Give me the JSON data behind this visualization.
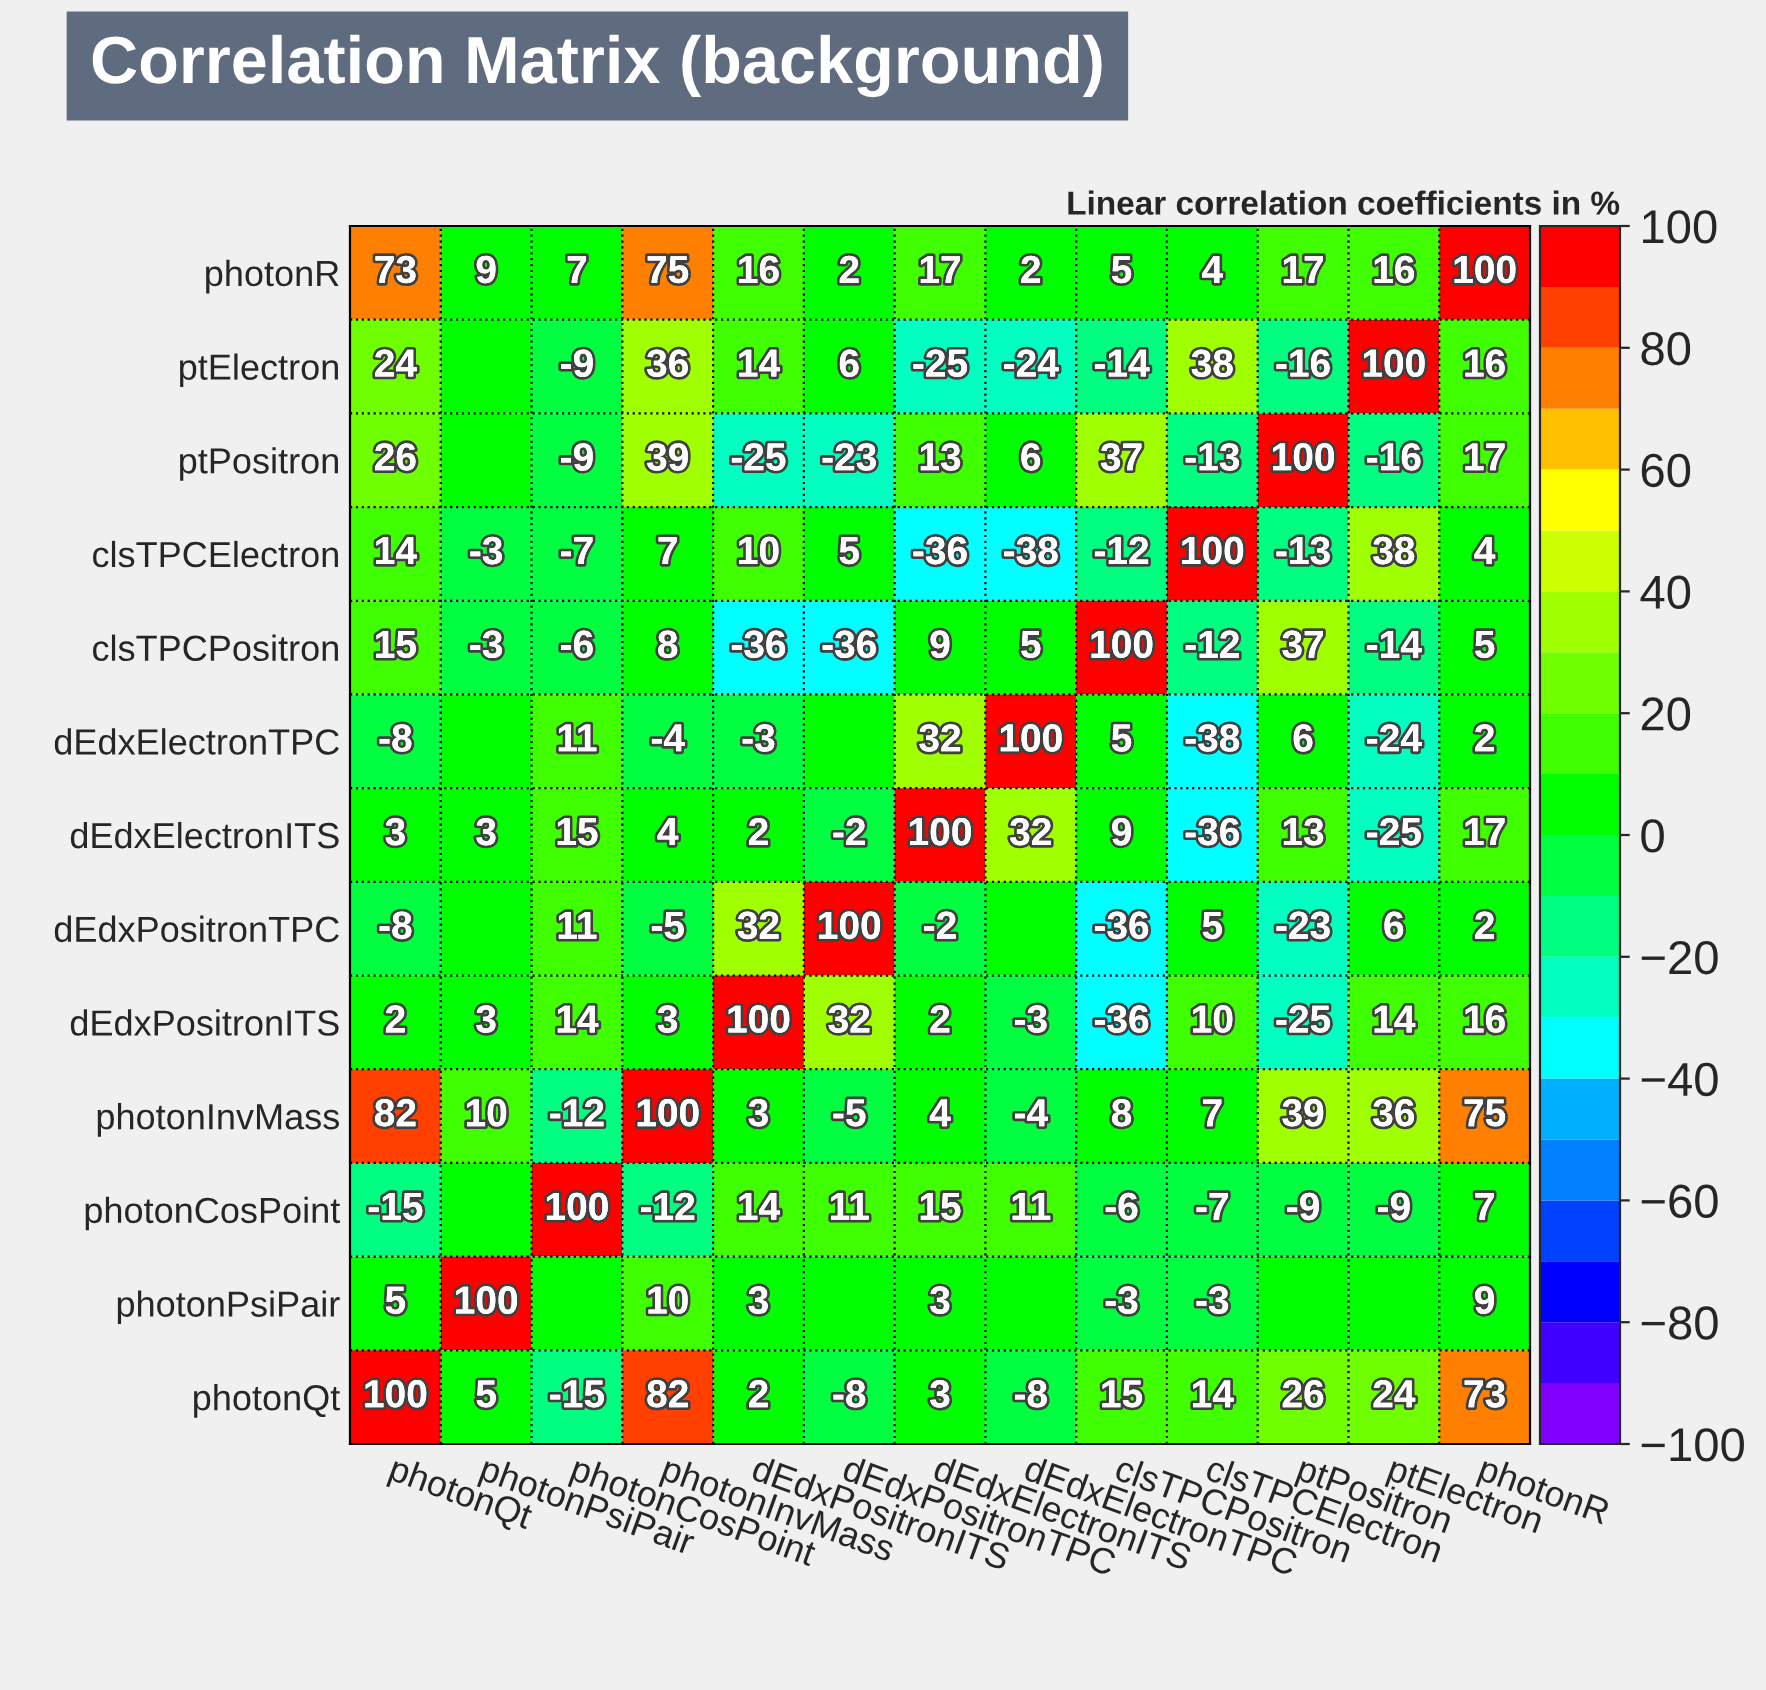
{
  "chart_data": {
    "type": "heatmap",
    "title": "Correlation Matrix (background)",
    "clabel": "Linear correlation coefficients in %",
    "categories": [
      "photonQt",
      "photonPsiPair",
      "photonCosPoint",
      "photonInvMass",
      "dEdxPositronITS",
      "dEdxPositronTPC",
      "dEdxElectronITS",
      "dEdxElectronTPC",
      "clsTPCPositron",
      "clsTPCElectron",
      "ptPositron",
      "ptElectron",
      "photonR"
    ],
    "y_categories": [
      "photonR",
      "ptElectron",
      "ptPositron",
      "clsTPCElectron",
      "clsTPCPositron",
      "dEdxElectronTPC",
      "dEdxElectronITS",
      "dEdxPositronTPC",
      "dEdxPositronITS",
      "photonInvMass",
      "photonCosPoint",
      "photonPsiPair",
      "photonQt"
    ],
    "cells": [
      [
        73,
        9,
        7,
        75,
        16,
        2,
        17,
        2,
        5,
        4,
        17,
        16,
        100
      ],
      [
        24,
        0,
        -9,
        36,
        14,
        6,
        -25,
        -24,
        -14,
        38,
        -16,
        100,
        16
      ],
      [
        26,
        0,
        -9,
        39,
        -25,
        -23,
        13,
        6,
        37,
        -13,
        100,
        -16,
        17
      ],
      [
        14,
        -3,
        -7,
        7,
        10,
        5,
        -36,
        -38,
        -12,
        100,
        -13,
        38,
        4
      ],
      [
        15,
        -3,
        -6,
        8,
        -36,
        -36,
        9,
        5,
        100,
        -12,
        37,
        -14,
        5
      ],
      [
        -8,
        0,
        11,
        -4,
        -3,
        0,
        32,
        100,
        5,
        -38,
        6,
        -24,
        2
      ],
      [
        3,
        3,
        15,
        4,
        2,
        -2,
        100,
        32,
        9,
        -36,
        13,
        -25,
        17
      ],
      [
        -8,
        0,
        11,
        -5,
        32,
        100,
        -2,
        0,
        -36,
        5,
        -23,
        6,
        2
      ],
      [
        2,
        3,
        14,
        3,
        100,
        32,
        2,
        -3,
        -36,
        10,
        -25,
        14,
        16
      ],
      [
        82,
        10,
        -12,
        100,
        3,
        -5,
        4,
        -4,
        8,
        7,
        39,
        36,
        75
      ],
      [
        -15,
        0,
        100,
        -12,
        14,
        11,
        15,
        11,
        -6,
        -7,
        -9,
        -9,
        7
      ],
      [
        5,
        100,
        0,
        10,
        3,
        0,
        3,
        0,
        -3,
        -3,
        0,
        0,
        9
      ],
      [
        100,
        5,
        -15,
        82,
        2,
        -8,
        3,
        -8,
        15,
        14,
        26,
        24,
        73
      ]
    ],
    "cell_labels": [
      [
        "73",
        "9",
        "7",
        "75",
        "16",
        "2",
        "17",
        "2",
        "5",
        "4",
        "17",
        "16",
        "100"
      ],
      [
        "24",
        null,
        "-9",
        "36",
        "14",
        "6",
        "-25",
        "-24",
        "-14",
        "38",
        "-16",
        "100",
        "16"
      ],
      [
        "26",
        null,
        "-9",
        "39",
        "-25",
        "-23",
        "13",
        "6",
        "37",
        "-13",
        "100",
        "-16",
        "17"
      ],
      [
        "14",
        "-3",
        "-7",
        "7",
        "10",
        "5",
        "-36",
        "-38",
        "-12",
        "100",
        "-13",
        "38",
        "4"
      ],
      [
        "15",
        "-3",
        "-6",
        "8",
        "-36",
        "-36",
        "9",
        "5",
        "100",
        "-12",
        "37",
        "-14",
        "5"
      ],
      [
        "-8",
        null,
        "11",
        "-4",
        "-3",
        null,
        "32",
        "100",
        "5",
        "-38",
        "6",
        "-24",
        "2"
      ],
      [
        "3",
        "3",
        "15",
        "4",
        "2",
        "-2",
        "100",
        "32",
        "9",
        "-36",
        "13",
        "-25",
        "17"
      ],
      [
        "-8",
        null,
        "11",
        "-5",
        "32",
        "100",
        "-2",
        null,
        "-36",
        "5",
        "-23",
        "6",
        "2"
      ],
      [
        "2",
        "3",
        "14",
        "3",
        "100",
        "32",
        "2",
        "-3",
        "-36",
        "10",
        "-25",
        "14",
        "16"
      ],
      [
        "82",
        "10",
        "-12",
        "100",
        "3",
        "-5",
        "4",
        "-4",
        "8",
        "7",
        "39",
        "36",
        "75"
      ],
      [
        "-15",
        null,
        "100",
        "-12",
        "14",
        "11",
        "15",
        "11",
        "-6",
        "-7",
        "-9",
        "-9",
        "7"
      ],
      [
        "5",
        "100",
        null,
        "10",
        "3",
        null,
        "3",
        null,
        "-3",
        "-3",
        null,
        null,
        "9"
      ],
      [
        "100",
        "5",
        "-15",
        "82",
        "2",
        "-8",
        "3",
        "-8",
        "15",
        "14",
        "26",
        "24",
        "73"
      ]
    ],
    "clim": [
      -100,
      100
    ],
    "cticks": [
      -100,
      -80,
      -60,
      -40,
      -20,
      0,
      20,
      40,
      60,
      80,
      100
    ],
    "grid": true
  }
}
